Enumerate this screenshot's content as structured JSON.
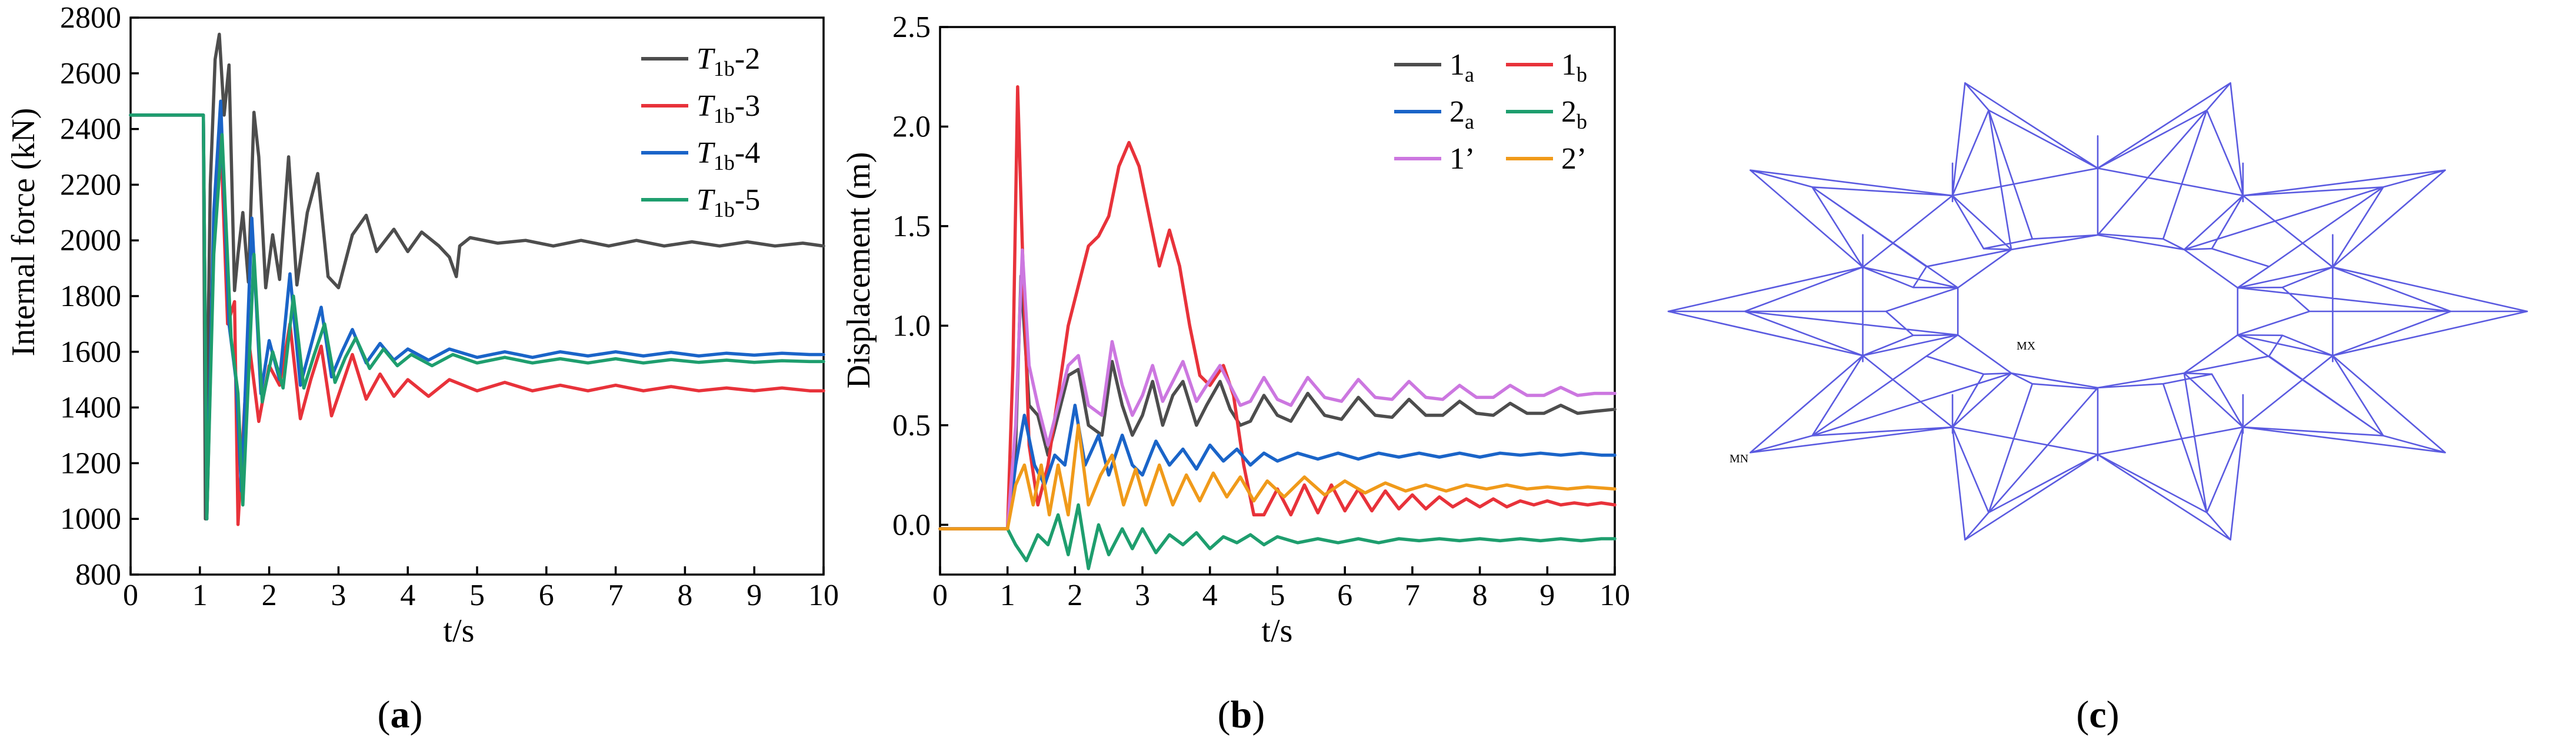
{
  "chart_data": [
    {
      "type": "line",
      "panel_label": "a",
      "title": "",
      "xlabel": "t/s",
      "ylabel": "Internal force (kN)",
      "xlim": [
        0,
        10
      ],
      "ylim": [
        800,
        2800
      ],
      "xticks": [
        0,
        1,
        2,
        3,
        4,
        5,
        6,
        7,
        8,
        9,
        10
      ],
      "yticks": [
        800,
        1000,
        1200,
        1400,
        1600,
        1800,
        2000,
        2200,
        2400,
        2600,
        2800
      ],
      "legend_position": "top-right",
      "series": [
        {
          "name": "T1b-2",
          "label_main": "T",
          "label_sub": "1b",
          "label_suffix": "-2",
          "color": "#4d4d4d",
          "x": [
            0,
            1.05,
            1.08,
            1.15,
            1.22,
            1.28,
            1.35,
            1.42,
            1.5,
            1.55,
            1.62,
            1.7,
            1.78,
            1.85,
            1.95,
            2.05,
            2.15,
            2.28,
            2.4,
            2.55,
            2.7,
            2.85,
            3.0,
            3.2,
            3.4,
            3.55,
            3.8,
            4.0,
            4.2,
            4.45,
            4.6,
            4.7,
            4.75,
            4.9,
            5.3,
            5.7,
            6.1,
            6.5,
            6.9,
            7.3,
            7.7,
            8.1,
            8.5,
            8.9,
            9.3,
            9.7,
            10
          ],
          "y": [
            2450,
            2450,
            1000,
            2200,
            2650,
            2740,
            2450,
            2630,
            1820,
            1950,
            2100,
            1850,
            2460,
            2300,
            1830,
            2020,
            1860,
            2300,
            1840,
            2100,
            2240,
            1870,
            1830,
            2020,
            2090,
            1960,
            2040,
            1960,
            2030,
            1980,
            1940,
            1870,
            1980,
            2010,
            1990,
            2000,
            1980,
            2000,
            1980,
            2000,
            1980,
            1995,
            1980,
            1995,
            1980,
            1990,
            1980
          ]
        },
        {
          "name": "T1b-3",
          "label_main": "T",
          "label_sub": "1b",
          "label_suffix": "-3",
          "color": "#e8323a",
          "x": [
            0,
            1.05,
            1.1,
            1.2,
            1.3,
            1.4,
            1.5,
            1.55,
            1.7,
            1.85,
            2.0,
            2.15,
            2.3,
            2.45,
            2.6,
            2.75,
            2.9,
            3.05,
            3.2,
            3.4,
            3.6,
            3.8,
            4.0,
            4.3,
            4.6,
            5.0,
            5.4,
            5.8,
            6.2,
            6.6,
            7.0,
            7.4,
            7.8,
            8.2,
            8.6,
            9.0,
            9.4,
            9.8,
            10
          ],
          "y": [
            2450,
            2450,
            1000,
            2000,
            2380,
            1700,
            1780,
            980,
            1650,
            1350,
            1550,
            1480,
            1700,
            1360,
            1500,
            1620,
            1370,
            1480,
            1590,
            1430,
            1520,
            1440,
            1500,
            1440,
            1500,
            1460,
            1490,
            1460,
            1480,
            1460,
            1480,
            1460,
            1475,
            1460,
            1470,
            1460,
            1470,
            1460,
            1460
          ]
        },
        {
          "name": "T1b-4",
          "label_main": "T",
          "label_sub": "1b",
          "label_suffix": "-4",
          "color": "#1a64c8",
          "x": [
            0,
            1.05,
            1.1,
            1.2,
            1.3,
            1.42,
            1.52,
            1.6,
            1.75,
            1.88,
            2.0,
            2.15,
            2.3,
            2.45,
            2.6,
            2.75,
            2.9,
            3.05,
            3.2,
            3.4,
            3.6,
            3.8,
            4.0,
            4.3,
            4.6,
            5.0,
            5.4,
            5.8,
            6.2,
            6.6,
            7.0,
            7.4,
            7.8,
            8.2,
            8.6,
            9.0,
            9.4,
            9.8,
            10
          ],
          "y": [
            2450,
            2450,
            1000,
            2100,
            2500,
            1700,
            1500,
            1100,
            2080,
            1450,
            1640,
            1500,
            1880,
            1480,
            1620,
            1760,
            1510,
            1600,
            1680,
            1560,
            1630,
            1570,
            1610,
            1570,
            1610,
            1580,
            1600,
            1580,
            1600,
            1585,
            1600,
            1585,
            1598,
            1585,
            1595,
            1588,
            1595,
            1590,
            1590
          ]
        },
        {
          "name": "T1b-5",
          "label_main": "T",
          "label_sub": "1b",
          "label_suffix": "-5",
          "color": "#1e9e6e",
          "x": [
            0,
            1.05,
            1.1,
            1.2,
            1.32,
            1.45,
            1.55,
            1.62,
            1.78,
            1.9,
            2.05,
            2.2,
            2.35,
            2.5,
            2.65,
            2.8,
            2.95,
            3.1,
            3.25,
            3.45,
            3.65,
            3.85,
            4.05,
            4.35,
            4.65,
            5.0,
            5.4,
            5.8,
            6.2,
            6.6,
            7.0,
            7.4,
            7.8,
            8.2,
            8.6,
            9.0,
            9.4,
            9.8,
            10
          ],
          "y": [
            2450,
            2450,
            1000,
            1950,
            2380,
            1650,
            1450,
            1050,
            1950,
            1420,
            1600,
            1470,
            1800,
            1470,
            1590,
            1700,
            1490,
            1580,
            1650,
            1540,
            1610,
            1550,
            1590,
            1550,
            1590,
            1560,
            1580,
            1560,
            1575,
            1560,
            1575,
            1560,
            1572,
            1562,
            1570,
            1562,
            1568,
            1565,
            1565
          ]
        }
      ]
    },
    {
      "type": "line",
      "panel_label": "b",
      "title": "",
      "xlabel": "t/s",
      "ylabel": "Displacement (m)",
      "xlim": [
        0,
        10
      ],
      "ylim": [
        -0.25,
        2.5
      ],
      "xticks": [
        0,
        1,
        2,
        3,
        4,
        5,
        6,
        7,
        8,
        9,
        10
      ],
      "yticks": [
        0.0,
        0.5,
        1.0,
        1.5,
        2.0,
        2.5
      ],
      "ytick_labels": [
        "0.0",
        "0.5",
        "1.0",
        "1.5",
        "2.0",
        "2.5"
      ],
      "legend_position": "top-right",
      "series": [
        {
          "name": "1a",
          "label_main": "1",
          "label_sub": "a",
          "color": "#4d4d4d",
          "x": [
            0,
            1.0,
            1.12,
            1.2,
            1.32,
            1.45,
            1.6,
            1.75,
            1.9,
            2.05,
            2.2,
            2.4,
            2.55,
            2.7,
            2.85,
            3.0,
            3.15,
            3.3,
            3.45,
            3.6,
            3.8,
            3.95,
            4.15,
            4.3,
            4.45,
            4.6,
            4.8,
            5.0,
            5.2,
            5.45,
            5.7,
            5.95,
            6.2,
            6.45,
            6.7,
            6.95,
            7.2,
            7.45,
            7.7,
            7.95,
            8.2,
            8.45,
            8.7,
            8.95,
            9.2,
            9.45,
            9.7,
            10
          ],
          "y": [
            -0.02,
            -0.02,
            0.4,
            1.25,
            0.6,
            0.55,
            0.35,
            0.55,
            0.75,
            0.78,
            0.5,
            0.45,
            0.82,
            0.6,
            0.45,
            0.55,
            0.72,
            0.5,
            0.65,
            0.72,
            0.5,
            0.6,
            0.72,
            0.58,
            0.5,
            0.52,
            0.65,
            0.55,
            0.52,
            0.66,
            0.55,
            0.53,
            0.64,
            0.55,
            0.54,
            0.63,
            0.55,
            0.55,
            0.62,
            0.56,
            0.55,
            0.61,
            0.56,
            0.56,
            0.6,
            0.56,
            0.57,
            0.58
          ]
        },
        {
          "name": "1b",
          "label_main": "1",
          "label_sub": "b",
          "color": "#e8323a",
          "x": [
            0,
            1.0,
            1.08,
            1.15,
            1.22,
            1.32,
            1.45,
            1.6,
            1.75,
            1.9,
            2.05,
            2.2,
            2.35,
            2.5,
            2.65,
            2.8,
            2.95,
            3.1,
            3.25,
            3.4,
            3.55,
            3.7,
            3.85,
            4.0,
            4.2,
            4.35,
            4.5,
            4.65,
            4.8,
            5.0,
            5.2,
            5.4,
            5.6,
            5.8,
            6.0,
            6.2,
            6.4,
            6.6,
            6.8,
            7.0,
            7.2,
            7.4,
            7.6,
            7.8,
            8.0,
            8.2,
            8.4,
            8.6,
            8.8,
            9.0,
            9.2,
            9.4,
            9.6,
            9.8,
            10
          ],
          "y": [
            -0.02,
            -0.02,
            0.8,
            2.2,
            1.4,
            0.4,
            0.1,
            0.3,
            0.65,
            1.0,
            1.2,
            1.4,
            1.45,
            1.55,
            1.8,
            1.92,
            1.8,
            1.55,
            1.3,
            1.48,
            1.3,
            1.0,
            0.75,
            0.7,
            0.8,
            0.65,
            0.3,
            0.05,
            0.05,
            0.18,
            0.05,
            0.2,
            0.06,
            0.2,
            0.07,
            0.18,
            0.07,
            0.17,
            0.08,
            0.15,
            0.08,
            0.14,
            0.09,
            0.13,
            0.09,
            0.13,
            0.09,
            0.12,
            0.1,
            0.12,
            0.1,
            0.11,
            0.1,
            0.11,
            0.1
          ]
        },
        {
          "name": "2a",
          "label_main": "2",
          "label_sub": "a",
          "color": "#1a64c8",
          "x": [
            0,
            1.0,
            1.12,
            1.25,
            1.4,
            1.55,
            1.7,
            1.85,
            2.0,
            2.15,
            2.35,
            2.5,
            2.7,
            2.85,
            3.0,
            3.2,
            3.4,
            3.6,
            3.8,
            4.0,
            4.2,
            4.4,
            4.6,
            4.8,
            5.0,
            5.3,
            5.6,
            5.9,
            6.2,
            6.5,
            6.8,
            7.1,
            7.4,
            7.7,
            8.0,
            8.3,
            8.6,
            8.9,
            9.2,
            9.5,
            9.8,
            10
          ],
          "y": [
            -0.02,
            -0.02,
            0.3,
            0.55,
            0.3,
            0.2,
            0.35,
            0.3,
            0.6,
            0.3,
            0.45,
            0.25,
            0.45,
            0.3,
            0.25,
            0.42,
            0.3,
            0.38,
            0.28,
            0.4,
            0.32,
            0.38,
            0.3,
            0.36,
            0.32,
            0.36,
            0.33,
            0.36,
            0.33,
            0.36,
            0.34,
            0.36,
            0.34,
            0.36,
            0.34,
            0.36,
            0.35,
            0.36,
            0.35,
            0.36,
            0.35,
            0.35
          ]
        },
        {
          "name": "2b",
          "label_main": "2",
          "label_sub": "b",
          "color": "#1e9e6e",
          "x": [
            0,
            1.0,
            1.12,
            1.28,
            1.45,
            1.6,
            1.75,
            1.9,
            2.05,
            2.2,
            2.35,
            2.5,
            2.7,
            2.85,
            3.0,
            3.2,
            3.4,
            3.6,
            3.8,
            4.0,
            4.2,
            4.4,
            4.6,
            4.8,
            5.0,
            5.3,
            5.6,
            5.9,
            6.2,
            6.5,
            6.8,
            7.1,
            7.4,
            7.7,
            8.0,
            8.3,
            8.6,
            8.9,
            9.2,
            9.5,
            9.8,
            10
          ],
          "y": [
            -0.02,
            -0.02,
            -0.1,
            -0.18,
            -0.05,
            -0.1,
            0.05,
            -0.15,
            0.1,
            -0.22,
            0.0,
            -0.15,
            -0.02,
            -0.12,
            -0.02,
            -0.14,
            -0.05,
            -0.1,
            -0.04,
            -0.12,
            -0.06,
            -0.09,
            -0.05,
            -0.1,
            -0.06,
            -0.09,
            -0.07,
            -0.09,
            -0.07,
            -0.09,
            -0.07,
            -0.08,
            -0.07,
            -0.08,
            -0.07,
            -0.08,
            -0.07,
            -0.08,
            -0.07,
            -0.08,
            -0.07,
            -0.07
          ]
        },
        {
          "name": "1’",
          "label_main": "1’",
          "label_sub": "",
          "color": "#cc77e0",
          "x": [
            0,
            1.0,
            1.12,
            1.22,
            1.32,
            1.45,
            1.6,
            1.75,
            1.9,
            2.05,
            2.2,
            2.4,
            2.55,
            2.7,
            2.85,
            3.0,
            3.15,
            3.3,
            3.45,
            3.6,
            3.8,
            3.95,
            4.15,
            4.3,
            4.45,
            4.6,
            4.8,
            5.0,
            5.2,
            5.45,
            5.7,
            5.95,
            6.2,
            6.45,
            6.7,
            6.95,
            7.2,
            7.45,
            7.7,
            7.95,
            8.2,
            8.45,
            8.7,
            8.95,
            9.2,
            9.45,
            9.7,
            10
          ],
          "y": [
            -0.02,
            -0.02,
            0.5,
            1.38,
            0.8,
            0.6,
            0.4,
            0.6,
            0.8,
            0.85,
            0.6,
            0.55,
            0.92,
            0.7,
            0.55,
            0.65,
            0.8,
            0.62,
            0.72,
            0.82,
            0.62,
            0.7,
            0.8,
            0.7,
            0.6,
            0.62,
            0.74,
            0.63,
            0.6,
            0.74,
            0.64,
            0.62,
            0.73,
            0.64,
            0.63,
            0.72,
            0.64,
            0.63,
            0.7,
            0.64,
            0.64,
            0.7,
            0.65,
            0.65,
            0.69,
            0.65,
            0.66,
            0.66
          ]
        },
        {
          "name": "2’",
          "label_main": "2’",
          "label_sub": "",
          "color": "#f09a1a",
          "x": [
            0,
            1.0,
            1.12,
            1.25,
            1.38,
            1.5,
            1.62,
            1.75,
            1.9,
            2.05,
            2.2,
            2.38,
            2.55,
            2.72,
            2.9,
            3.05,
            3.25,
            3.45,
            3.65,
            3.85,
            4.05,
            4.25,
            4.45,
            4.65,
            4.85,
            5.1,
            5.4,
            5.7,
            6.0,
            6.3,
            6.6,
            6.9,
            7.2,
            7.5,
            7.8,
            8.1,
            8.4,
            8.7,
            9.0,
            9.3,
            9.6,
            10
          ],
          "y": [
            -0.02,
            -0.02,
            0.2,
            0.3,
            0.1,
            0.3,
            0.05,
            0.3,
            0.05,
            0.5,
            0.1,
            0.25,
            0.35,
            0.1,
            0.28,
            0.1,
            0.3,
            0.1,
            0.25,
            0.12,
            0.26,
            0.14,
            0.24,
            0.12,
            0.22,
            0.14,
            0.24,
            0.15,
            0.22,
            0.16,
            0.21,
            0.17,
            0.2,
            0.17,
            0.2,
            0.18,
            0.2,
            0.18,
            0.19,
            0.18,
            0.19,
            0.18
          ]
        }
      ]
    }
  ],
  "structure_panel": {
    "panel_label": "c",
    "marker_max": "MX",
    "marker_min": "MN",
    "line_color": "#5a5ae0"
  }
}
